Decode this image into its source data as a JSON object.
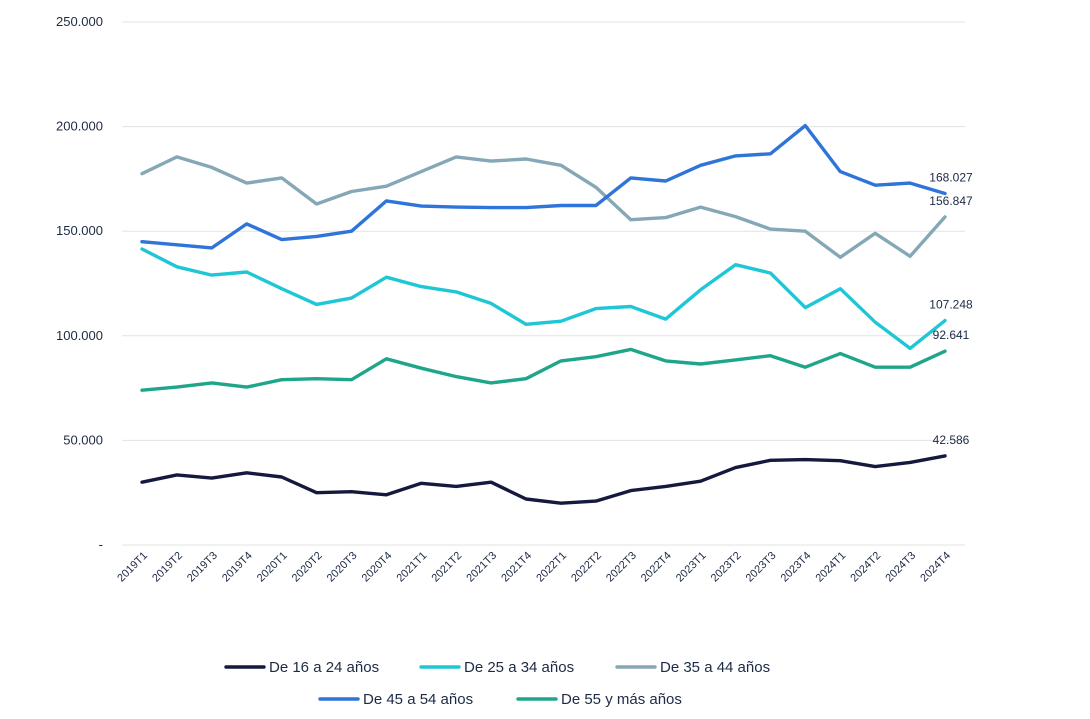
{
  "chart_data": {
    "type": "line",
    "title": "",
    "xlabel": "",
    "ylabel": "",
    "ylim": [
      0,
      250000
    ],
    "yticks": [
      0,
      50000,
      100000,
      150000,
      200000,
      250000
    ],
    "ytick_labels": [
      "-",
      "50.000",
      "100.000",
      "150.000",
      "200.000",
      "250.000"
    ],
    "grid": "horizontal",
    "legend_position": "bottom",
    "categories": [
      "2019T1",
      "2019T2",
      "2019T3",
      "2019T4",
      "2020T1",
      "2020T2",
      "2020T3",
      "2020T4",
      "2021T1",
      "2021T2",
      "2021T3",
      "2021T4",
      "2022T1",
      "2022T2",
      "2022T3",
      "2022T4",
      "2023T1",
      "2023T2",
      "2023T3",
      "2023T4",
      "2024T1",
      "2024T2",
      "2024T3",
      "2024T4"
    ],
    "series": [
      {
        "name": "De 16 a 24 años",
        "color": "#15193d",
        "values": [
          30000,
          33500,
          32000,
          34500,
          32500,
          25000,
          25500,
          24000,
          29500,
          28000,
          30000,
          22000,
          20000,
          21000,
          26000,
          28000,
          30500,
          37000,
          40500,
          40800,
          40300,
          37500,
          39500,
          42586
        ],
        "end_label": "42.586"
      },
      {
        "name": "De 25 a 34 años",
        "color": "#1fc6d6",
        "values": [
          141500,
          133000,
          129000,
          130500,
          122500,
          115000,
          118000,
          128000,
          123500,
          121000,
          115500,
          105500,
          107000,
          113000,
          114000,
          108000,
          122000,
          134000,
          130000,
          113500,
          122500,
          106500,
          94000,
          107248
        ],
        "end_label": "107.248"
      },
      {
        "name": "De 35 a 44 años",
        "color": "#86a7b5",
        "values": [
          177500,
          185500,
          180500,
          173000,
          175500,
          163000,
          169000,
          171500,
          178500,
          185500,
          183500,
          184500,
          181500,
          171000,
          155500,
          156500,
          161500,
          157000,
          151000,
          150000,
          137500,
          149000,
          138000,
          156847
        ],
        "end_label": "156.847"
      },
      {
        "name": "De 45 a 54 años",
        "color": "#2f74d9",
        "values": [
          145000,
          143500,
          142000,
          153500,
          146000,
          147500,
          150000,
          164500,
          162000,
          161500,
          161300,
          161300,
          162300,
          162300,
          175500,
          174000,
          181500,
          186000,
          187000,
          200500,
          178500,
          172000,
          173000,
          168027
        ],
        "end_label": "168.027"
      },
      {
        "name": "De 55 y más años",
        "color": "#1fa68a",
        "values": [
          74000,
          75500,
          77500,
          75500,
          79000,
          79500,
          79000,
          89000,
          84500,
          80500,
          77500,
          79500,
          88000,
          90000,
          93500,
          88000,
          86500,
          88500,
          90500,
          85000,
          91500,
          85000,
          85000,
          92641
        ],
        "end_label": "92.641"
      }
    ]
  },
  "legend": {
    "row1": [
      "De 16 a 24 años",
      "De 25 a 34 años",
      "De 35 a 44 años"
    ],
    "row2": [
      "De 45 a 54 años",
      "De 55 y más años"
    ]
  }
}
